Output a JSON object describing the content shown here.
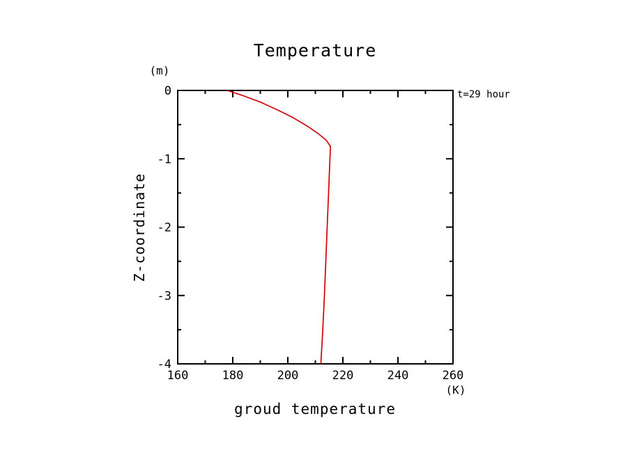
{
  "chart_data": {
    "type": "line",
    "title": "Temperature",
    "xlabel": "groud temperature",
    "ylabel": "Z-coordinate",
    "x_unit": "(K)",
    "y_unit": "(m)",
    "annotation": "t=29 hour",
    "xlim": [
      160,
      260
    ],
    "ylim": [
      -4,
      0
    ],
    "x_ticks": [
      160,
      180,
      200,
      220,
      240,
      260
    ],
    "y_ticks": [
      0,
      -1,
      -2,
      -3,
      -4
    ],
    "grid": false,
    "legend": "none",
    "axis_color": "#000000",
    "series": [
      {
        "name": "t=29 hour",
        "color": "#d40000",
        "points": [
          {
            "x": 178,
            "y": 0
          },
          {
            "x": 184,
            "y": -0.08
          },
          {
            "x": 190,
            "y": -0.17
          },
          {
            "x": 196,
            "y": -0.28
          },
          {
            "x": 202,
            "y": -0.4
          },
          {
            "x": 207,
            "y": -0.52
          },
          {
            "x": 211,
            "y": -0.63
          },
          {
            "x": 214,
            "y": -0.73
          },
          {
            "x": 215.5,
            "y": -0.82
          },
          {
            "x": 215.3,
            "y": -1.0
          },
          {
            "x": 214.8,
            "y": -1.5
          },
          {
            "x": 214.3,
            "y": -2.0
          },
          {
            "x": 213.8,
            "y": -2.5
          },
          {
            "x": 213.3,
            "y": -3.0
          },
          {
            "x": 212.7,
            "y": -3.5
          },
          {
            "x": 212,
            "y": -4.0
          }
        ]
      }
    ]
  }
}
